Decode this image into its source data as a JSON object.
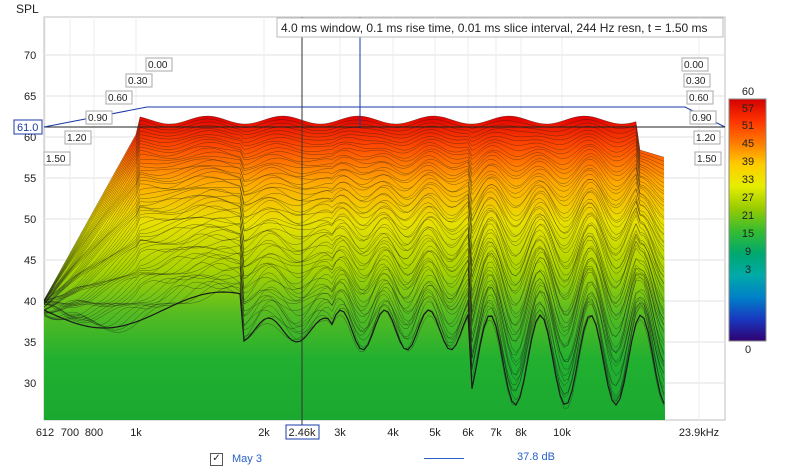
{
  "window": {
    "title": ""
  },
  "chart_data": {
    "type": "waterfall",
    "title": "4.0 ms window, 0.1 ms rise time, 0.01 ms slice interval, 244 Hz resn, t = 1.50 ms",
    "ylabel": "SPL",
    "xunit": "kHz",
    "x_ticks": [
      "612",
      "700",
      "800",
      "1k",
      "2k",
      "2.46k",
      "3k",
      "4k",
      "5k",
      "6k",
      "7k",
      "8k",
      "10k",
      "23.9kHz"
    ],
    "y_ticks": [
      70,
      65,
      60,
      55,
      50,
      45,
      40,
      35,
      30
    ],
    "time_labels": [
      "0.00",
      "0.30",
      "0.60",
      "0.90",
      "1.20",
      "1.50"
    ],
    "cursor_freq": "2.46k",
    "cursor_spl": "61.0",
    "colorbar": {
      "labels": [
        "60",
        "57",
        "51",
        "45",
        "39",
        "33",
        "27",
        "21",
        "15",
        "9",
        "3",
        "0"
      ],
      "stops": [
        "#d40000",
        "#ff3300",
        "#ff7a00",
        "#ffd000",
        "#f0f000",
        "#99cc00",
        "#33bb33",
        "#00a060",
        "#00a8a0",
        "#0090c0",
        "#1040c0",
        "#300070"
      ]
    },
    "colors": {
      "frame": "#bfbfbf",
      "cursor": "#1a3aa8",
      "line": "#1a1a1a"
    }
  },
  "legend": {
    "checked": "✓",
    "name": "May 3",
    "value": "37.8 dB"
  }
}
